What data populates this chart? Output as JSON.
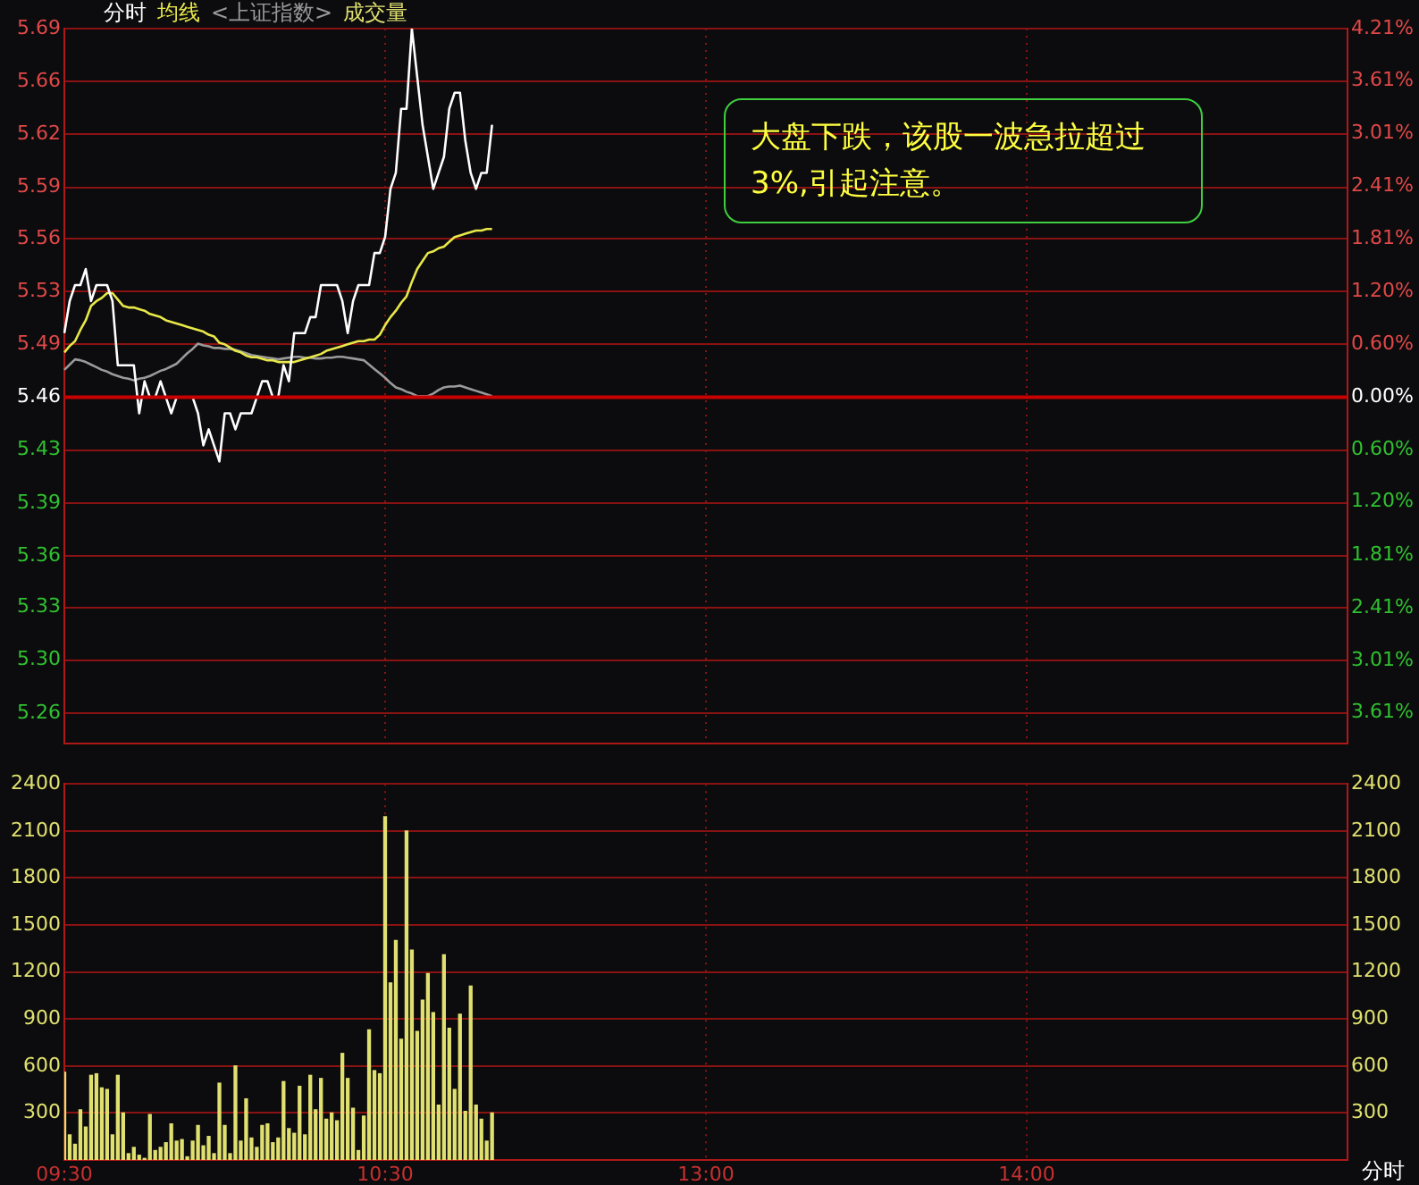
{
  "chart_data": [
    {
      "type": "line",
      "legend": "top left",
      "grid": true,
      "tick_labels": "y",
      "categories": [
        null,
        null,
        null,
        null,
        null,
        null,
        null,
        null,
        null,
        null,
        null,
        null,
        null,
        null,
        null,
        null,
        null,
        null,
        null,
        null,
        null,
        null,
        null,
        null,
        null,
        null,
        null,
        null,
        null,
        null,
        null,
        null,
        null,
        null,
        null,
        null,
        null,
        null,
        null,
        null,
        null,
        null,
        null,
        null,
        null,
        null,
        null,
        null,
        null,
        null,
        null,
        null,
        null,
        null,
        null,
        null,
        null,
        null,
        null,
        null,
        null,
        null,
        null,
        null,
        null,
        null,
        null,
        null,
        null,
        null,
        null,
        null,
        null,
        null,
        null,
        null,
        null,
        null,
        null,
        null,
        null,
        null,
        null,
        null,
        null,
        null,
        null,
        null,
        null,
        null,
        null,
        null,
        null,
        null,
        null,
        null,
        null,
        null,
        null,
        null,
        null,
        null,
        null,
        null,
        null,
        null,
        null,
        null,
        null,
        null,
        null,
        null,
        null,
        null,
        null,
        null,
        null,
        null,
        null,
        null,
        null,
        null,
        null,
        null,
        null,
        null,
        null,
        null,
        null,
        null,
        null,
        null,
        null,
        null,
        null,
        null,
        null,
        null,
        null,
        null,
        null,
        null,
        null,
        null,
        null,
        null,
        null,
        null,
        null,
        null,
        null,
        null,
        null,
        null,
        null,
        null,
        null,
        null,
        null,
        null,
        null,
        null,
        null,
        null,
        null,
        null,
        null,
        null,
        null,
        null,
        null,
        null,
        null,
        null,
        null,
        null,
        null,
        null,
        null,
        null,
        null,
        null,
        null,
        null,
        null,
        null,
        null,
        null,
        null,
        null,
        null,
        null,
        null,
        null,
        null,
        null,
        null,
        null,
        null,
        null,
        null,
        null,
        null,
        null,
        null,
        null,
        null,
        null,
        null,
        null,
        null,
        null,
        null,
        null,
        null,
        null,
        null,
        null,
        null,
        null,
        null,
        null,
        null,
        null,
        null,
        null,
        null,
        null,
        null,
        null,
        null,
        null,
        null,
        null,
        null,
        null,
        null,
        null,
        null,
        null,
        null
      ],
      "ylim": [
        5.244,
        5.69
      ],
      "yticks": [
        {
          "value": 5.69,
          "label": "5.69"
        },
        {
          "value": 5.657,
          "label": "5.66"
        },
        {
          "value": 5.624,
          "label": "5.62"
        },
        {
          "value": 5.591,
          "label": "5.59"
        },
        {
          "value": 5.559,
          "label": "5.56"
        },
        {
          "value": 5.526,
          "label": "5.53"
        },
        {
          "value": 5.493,
          "label": "5.49"
        },
        {
          "value": 5.46,
          "label": "5.46"
        },
        {
          "value": 5.427,
          "label": "5.43"
        },
        {
          "value": 5.394,
          "label": "5.39"
        },
        {
          "value": 5.361,
          "label": "5.36"
        },
        {
          "value": 5.329,
          "label": "5.33"
        },
        {
          "value": 5.296,
          "label": "5.30"
        },
        {
          "value": 5.263,
          "label": "5.26"
        }
      ],
      "y2lim": [
        -3.96,
        4.21
      ],
      "y2ticks": [
        {
          "value": 4.21,
          "label": "4.21%"
        },
        {
          "value": 3.61,
          "label": "3.61%"
        },
        {
          "value": 3.01,
          "label": "3.01%"
        },
        {
          "value": 2.41,
          "label": "2.41%"
        },
        {
          "value": 1.81,
          "label": "1.81%"
        },
        {
          "value": 1.2,
          "label": "1.20%"
        },
        {
          "value": 0.6,
          "label": "0.60%"
        },
        {
          "value": 0,
          "label": "0.00%"
        },
        {
          "value": -0.6,
          "label": "0.60%"
        },
        {
          "value": -1.2,
          "label": "1.20%"
        },
        {
          "value": -1.81,
          "label": "1.81%"
        },
        {
          "value": -2.41,
          "label": "2.41%"
        },
        {
          "value": -3.01,
          "label": "3.01%"
        },
        {
          "value": -3.61,
          "label": "3.61%"
        }
      ],
      "ref_lines": [
        {
          "axis": "y",
          "value": 5.46,
          "color": "#c80000"
        }
      ],
      "annotations": [
        "大盘下跌，该股一波急拉超过3%,引起注意。"
      ],
      "series": [
        {
          "name": "分时",
          "color": "#ffffff",
          "values": [
            5.5,
            5.52,
            5.53,
            5.53,
            5.54,
            5.52,
            5.53,
            5.53,
            5.53,
            5.52,
            5.48,
            5.48,
            5.48,
            5.48,
            5.45,
            5.47,
            5.46,
            5.46,
            5.47,
            5.46,
            5.45,
            5.46,
            5.46,
            5.46,
            5.46,
            5.45,
            5.43,
            5.44,
            5.43,
            5.42,
            5.45,
            5.45,
            5.44,
            5.45,
            5.45,
            5.45,
            5.46,
            5.47,
            5.47,
            5.46,
            5.46,
            5.48,
            5.47,
            5.5,
            5.5,
            5.5,
            5.51,
            5.51,
            5.53,
            5.53,
            5.53,
            5.53,
            5.52,
            5.5,
            5.52,
            5.53,
            5.53,
            5.53,
            5.55,
            5.55,
            5.56,
            5.59,
            5.6,
            5.64,
            5.64,
            5.69,
            5.66,
            5.63,
            5.61,
            5.59,
            5.6,
            5.61,
            5.64,
            5.65,
            5.65,
            5.62,
            5.6,
            5.59,
            5.6,
            5.6,
            5.63,
            null,
            null,
            null,
            null,
            null,
            null,
            null,
            null,
            null,
            null,
            null,
            null,
            null,
            null,
            null,
            null,
            null,
            null,
            null,
            null,
            null,
            null,
            null,
            null,
            null,
            null,
            null,
            null,
            null,
            null,
            null,
            null,
            null,
            null,
            null,
            null,
            null,
            null,
            null,
            null,
            null,
            null,
            null,
            null,
            null,
            null,
            null,
            null,
            null,
            null,
            null,
            null,
            null,
            null,
            null,
            null,
            null,
            null,
            null,
            null,
            null,
            null,
            null,
            null,
            null,
            null,
            null,
            null,
            null,
            null,
            null,
            null,
            null,
            null,
            null,
            null,
            null,
            null,
            null,
            null,
            null,
            null,
            null,
            null,
            null,
            null,
            null,
            null,
            null,
            null,
            null,
            null,
            null,
            null,
            null,
            null,
            null,
            null,
            null,
            null,
            null,
            null,
            null,
            null,
            null,
            null,
            null,
            null,
            null,
            null,
            null,
            null,
            null,
            null,
            null,
            null,
            null,
            null,
            null,
            null,
            null,
            null,
            null,
            null,
            null,
            null,
            null,
            null,
            null,
            null,
            null,
            null,
            null,
            null,
            null,
            null,
            null,
            null,
            null,
            null,
            null,
            null,
            null,
            null,
            null,
            null,
            null,
            null,
            null,
            null,
            null,
            null,
            null,
            null,
            null,
            null,
            null,
            null,
            null,
            null
          ]
        },
        {
          "name": "均线",
          "color": "#e8e84a",
          "values": [
            5.488,
            5.492,
            5.495,
            5.502,
            5.508,
            5.517,
            5.52,
            5.522,
            5.525,
            5.525,
            5.521,
            5.517,
            5.516,
            5.516,
            5.515,
            5.514,
            5.512,
            5.511,
            5.51,
            5.508,
            5.507,
            5.506,
            5.505,
            5.504,
            5.503,
            5.502,
            5.501,
            5.499,
            5.498,
            5.494,
            5.493,
            5.491,
            5.489,
            5.488,
            5.486,
            5.485,
            5.485,
            5.484,
            5.483,
            5.483,
            5.482,
            5.482,
            5.482,
            5.482,
            5.483,
            5.484,
            5.485,
            5.486,
            5.487,
            5.489,
            5.49,
            5.491,
            5.492,
            5.493,
            5.494,
            5.495,
            5.495,
            5.496,
            5.496,
            5.499,
            5.505,
            5.51,
            5.514,
            5.519,
            5.523,
            5.532,
            5.54,
            5.545,
            5.55,
            5.551,
            5.553,
            5.554,
            5.557,
            5.56,
            5.561,
            5.562,
            5.563,
            5.564,
            5.564,
            5.565,
            5.565,
            null,
            null,
            null,
            null,
            null,
            null,
            null,
            null,
            null,
            null,
            null,
            null,
            null,
            null,
            null,
            null,
            null,
            null,
            null,
            null,
            null,
            null,
            null,
            null,
            null,
            null,
            null,
            null,
            null,
            null,
            null,
            null,
            null,
            null,
            null,
            null,
            null,
            null,
            null,
            null,
            null,
            null,
            null,
            null,
            null,
            null,
            null,
            null,
            null,
            null,
            null,
            null,
            null,
            null,
            null,
            null,
            null,
            null,
            null,
            null,
            null,
            null,
            null,
            null,
            null,
            null,
            null,
            null,
            null,
            null,
            null,
            null,
            null,
            null,
            null,
            null,
            null,
            null,
            null,
            null,
            null,
            null,
            null,
            null,
            null,
            null,
            null,
            null,
            null,
            null,
            null,
            null,
            null,
            null,
            null,
            null,
            null,
            null,
            null,
            null,
            null,
            null,
            null,
            null,
            null,
            null,
            null,
            null,
            null,
            null,
            null,
            null,
            null,
            null,
            null,
            null,
            null,
            null,
            null,
            null,
            null,
            null,
            null,
            null,
            null,
            null,
            null,
            null,
            null,
            null,
            null,
            null,
            null,
            null,
            null,
            null,
            null,
            null,
            null,
            null,
            null,
            null,
            null,
            null,
            null,
            null,
            null,
            null,
            null,
            null,
            null,
            null,
            null,
            null,
            null,
            null,
            null,
            null,
            null,
            null
          ]
        },
        {
          "name": "<上证指数>",
          "color": "#9a9a9a",
          "axis": "y2",
          "values": [
            0.31,
            0.37,
            0.43,
            0.42,
            0.4,
            0.37,
            0.34,
            0.31,
            0.29,
            0.26,
            0.24,
            0.22,
            0.21,
            0.19,
            0.21,
            0.22,
            0.24,
            0.27,
            0.3,
            0.32,
            0.35,
            0.38,
            0.44,
            0.5,
            0.55,
            0.61,
            0.59,
            0.58,
            0.56,
            0.56,
            0.55,
            0.55,
            0.54,
            0.52,
            0.5,
            0.48,
            0.47,
            0.46,
            0.45,
            0.44,
            0.43,
            0.44,
            0.45,
            0.46,
            0.46,
            0.45,
            0.45,
            0.44,
            0.44,
            0.45,
            0.45,
            0.46,
            0.46,
            0.45,
            0.44,
            0.43,
            0.42,
            0.37,
            0.32,
            0.27,
            0.22,
            0.16,
            0.11,
            0.09,
            0.06,
            0.04,
            0.01,
            0.01,
            0.01,
            0.04,
            0.08,
            0.11,
            0.12,
            0.12,
            0.13,
            0.11,
            0.09,
            0.07,
            0.05,
            0.03,
            0.01,
            null,
            null,
            null,
            null,
            null,
            null,
            null,
            null,
            null,
            null,
            null,
            null,
            null,
            null,
            null,
            null,
            null,
            null,
            null,
            null,
            null,
            null,
            null,
            null,
            null,
            null,
            null,
            null,
            null,
            null,
            null,
            null,
            null,
            null,
            null,
            null,
            null,
            null,
            null,
            null,
            null,
            null,
            null,
            null,
            null,
            null,
            null,
            null,
            null,
            null,
            null,
            null,
            null,
            null,
            null,
            null,
            null,
            null,
            null,
            null,
            null,
            null,
            null,
            null,
            null,
            null,
            null,
            null,
            null,
            null,
            null,
            null,
            null,
            null,
            null,
            null,
            null,
            null,
            null,
            null,
            null,
            null,
            null,
            null,
            null,
            null,
            null,
            null,
            null,
            null,
            null,
            null,
            null,
            null,
            null,
            null,
            null,
            null,
            null,
            null,
            null,
            null,
            null,
            null,
            null,
            null,
            null,
            null,
            null,
            null,
            null,
            null,
            null,
            null,
            null,
            null,
            null,
            null,
            null,
            null,
            null,
            null,
            null,
            null,
            null,
            null,
            null,
            null,
            null,
            null,
            null,
            null,
            null,
            null,
            null,
            null,
            null,
            null,
            null,
            null,
            null,
            null,
            null,
            null,
            null,
            null,
            null,
            null,
            null,
            null,
            null,
            null,
            null,
            null,
            null,
            null,
            null,
            null,
            null,
            null
          ]
        }
      ]
    },
    {
      "type": "bar",
      "legend": "top left",
      "grid": true,
      "xlabel": "分时",
      "categories": [
        "09:30",
        null,
        null,
        null,
        null,
        null,
        null,
        null,
        null,
        null,
        null,
        null,
        null,
        null,
        null,
        null,
        null,
        null,
        null,
        null,
        null,
        null,
        null,
        null,
        null,
        null,
        null,
        null,
        null,
        null,
        null,
        null,
        null,
        null,
        null,
        null,
        null,
        null,
        null,
        null,
        null,
        null,
        null,
        null,
        null,
        null,
        null,
        null,
        null,
        null,
        null,
        null,
        null,
        null,
        null,
        null,
        null,
        null,
        null,
        null,
        "10:30",
        null,
        null,
        null,
        null,
        null,
        null,
        null,
        null,
        null,
        null,
        null,
        null,
        null,
        null,
        null,
        null,
        null,
        null,
        null,
        null,
        null,
        null,
        null,
        null,
        null,
        null,
        null,
        null,
        null,
        null,
        null,
        null,
        null,
        null,
        null,
        null,
        null,
        null,
        null,
        null,
        null,
        null,
        null,
        null,
        null,
        null,
        null,
        null,
        null,
        null,
        null,
        null,
        null,
        null,
        null,
        null,
        null,
        null,
        null,
        "13:00",
        null,
        null,
        null,
        null,
        null,
        null,
        null,
        null,
        null,
        null,
        null,
        null,
        null,
        null,
        null,
        null,
        null,
        null,
        null,
        null,
        null,
        null,
        null,
        null,
        null,
        null,
        null,
        null,
        null,
        null,
        null,
        null,
        null,
        null,
        null,
        null,
        null,
        null,
        null,
        null,
        null,
        null,
        null,
        null,
        null,
        null,
        null,
        null,
        null,
        null,
        null,
        null,
        null,
        null,
        null,
        null,
        null,
        null,
        null,
        "14:00",
        null,
        null,
        null,
        null,
        null,
        null,
        null,
        null,
        null,
        null,
        null,
        null,
        null,
        null,
        null,
        null,
        null,
        null,
        null,
        null,
        null,
        null,
        null,
        null,
        null,
        null,
        null,
        null,
        null,
        null,
        null,
        null,
        null,
        null,
        null,
        null,
        null,
        null,
        null,
        null,
        null,
        null,
        null,
        null,
        null,
        null,
        null,
        null,
        null,
        null,
        null,
        null,
        null,
        null,
        null,
        null,
        null,
        null,
        null,
        null
      ],
      "ylim": [
        0,
        2400
      ],
      "yticks": [
        300,
        600,
        900,
        1200,
        1500,
        1800,
        2100,
        2400
      ],
      "y2lim": [
        0,
        2400
      ],
      "y2ticks": [
        300,
        600,
        900,
        1200,
        1500,
        1800,
        2100,
        2400
      ],
      "series": [
        {
          "name": "成交量",
          "color": "#e0e070",
          "values": [
            560,
            160,
            100,
            320,
            210,
            540,
            550,
            460,
            450,
            160,
            540,
            300,
            40,
            80,
            30,
            10,
            290,
            60,
            80,
            110,
            230,
            120,
            130,
            20,
            120,
            220,
            90,
            150,
            40,
            490,
            220,
            40,
            600,
            120,
            390,
            140,
            80,
            220,
            230,
            110,
            140,
            500,
            200,
            170,
            470,
            160,
            540,
            320,
            520,
            260,
            300,
            250,
            680,
            520,
            330,
            60,
            280,
            830,
            570,
            550,
            2190,
            1130,
            1400,
            770,
            2100,
            1340,
            820,
            1020,
            1190,
            940,
            350,
            1310,
            840,
            450,
            930,
            310,
            1110,
            350,
            260,
            120,
            300,
            null,
            null,
            null,
            null,
            null,
            null,
            null,
            null,
            null,
            null,
            null,
            null,
            null,
            null,
            null,
            null,
            null,
            null,
            null,
            null,
            null,
            null,
            null,
            null,
            null,
            null,
            null,
            null,
            null,
            null,
            null,
            null,
            null,
            null,
            null,
            null,
            null,
            null,
            null,
            null,
            null,
            null,
            null,
            null,
            null,
            null,
            null,
            null,
            null,
            null,
            null,
            null,
            null,
            null,
            null,
            null,
            null,
            null,
            null,
            null,
            null,
            null,
            null,
            null,
            null,
            null,
            null,
            null,
            null,
            null,
            null,
            null,
            null,
            null,
            null,
            null,
            null,
            null,
            null,
            null,
            null,
            null,
            null,
            null,
            null,
            null,
            null,
            null,
            null,
            null,
            null,
            null,
            null,
            null,
            null,
            null,
            null,
            null,
            null,
            null,
            null,
            null,
            null,
            null,
            null,
            null,
            null,
            null,
            null,
            null,
            null,
            null,
            null,
            null,
            null,
            null,
            null,
            null,
            null,
            null,
            null,
            null,
            null,
            null,
            null,
            null,
            null,
            null,
            null,
            null,
            null,
            null,
            null,
            null,
            null,
            null,
            null,
            null,
            null,
            null,
            null,
            null,
            null,
            null,
            null,
            null,
            null,
            null,
            null,
            null,
            null,
            null,
            null,
            null,
            null,
            null,
            null,
            null,
            null,
            null
          ]
        }
      ]
    }
  ]
}
